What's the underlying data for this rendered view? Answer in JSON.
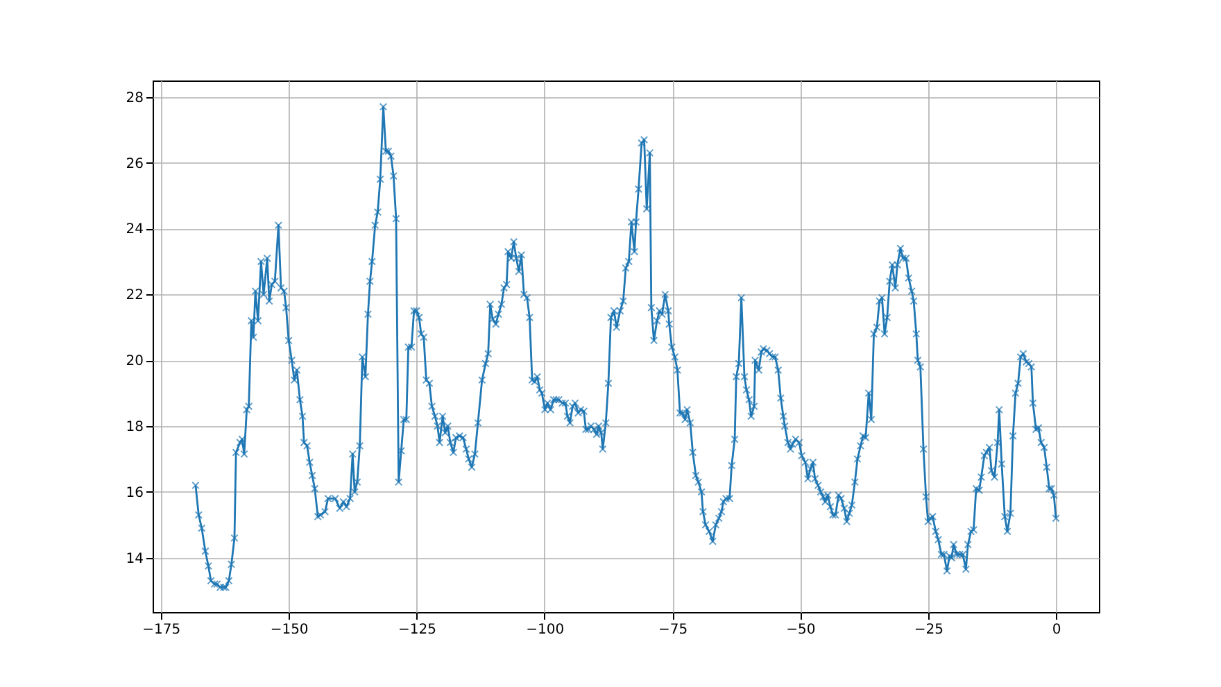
{
  "chart_data": {
    "type": "line",
    "marker": "cross",
    "grid": true,
    "xlim": [
      -176.6,
      8.4
    ],
    "ylim": [
      12.35,
      28.5
    ],
    "xticks": [
      -175,
      -150,
      -125,
      -100,
      -75,
      -50,
      -25,
      0
    ],
    "yticks": [
      14,
      16,
      18,
      20,
      22,
      24,
      26,
      28
    ],
    "series": [
      {
        "color": "#1f77b4",
        "x": [
          -168.2,
          -167.6,
          -167.0,
          -166.3,
          -165.7,
          -165.2,
          -164.5,
          -164.0,
          -163.4,
          -162.7,
          -162.3,
          -161.7,
          -161.2,
          -160.6,
          -160.3,
          -159.5,
          -159.1,
          -158.7,
          -158.2,
          -157.8,
          -157.3,
          -156.9,
          -156.5,
          -156.0,
          -155.4,
          -154.9,
          -154.2,
          -153.8,
          -153.3,
          -152.7,
          -152.0,
          -151.5,
          -150.9,
          -150.5,
          -150.0,
          -149.4,
          -148.9,
          -148.4,
          -147.8,
          -147.3,
          -147.0,
          -146.4,
          -145.9,
          -145.4,
          -144.9,
          -144.3,
          -143.8,
          -142.9,
          -142.3,
          -140.9,
          -140.0,
          -139.3,
          -138.7,
          -138.0,
          -137.5,
          -137.1,
          -136.6,
          -136.1,
          -135.6,
          -135.0,
          -134.5,
          -134.1,
          -133.7,
          -133.1,
          -132.6,
          -132.1,
          -131.5,
          -131.0,
          -130.5,
          -130.0,
          -129.5,
          -129.0,
          -128.5,
          -128.0,
          -127.5,
          -127.0,
          -126.6,
          -126.0,
          -125.5,
          -125.0,
          -124.5,
          -124.1,
          -123.6,
          -123.1,
          -122.5,
          -122.0,
          -121.4,
          -120.9,
          -120.5,
          -119.9,
          -119.4,
          -118.9,
          -118.4,
          -117.8,
          -117.3,
          -116.6,
          -115.9,
          -115.3,
          -114.8,
          -114.2,
          -113.6,
          -113.0,
          -112.2,
          -111.5,
          -111.0,
          -110.6,
          -110.1,
          -109.5,
          -109.0,
          -108.4,
          -107.9,
          -107.4,
          -107.1,
          -106.5,
          -106.0,
          -105.5,
          -105.0,
          -104.5,
          -104.0,
          -103.4,
          -102.9,
          -102.4,
          -101.9,
          -101.4,
          -100.9,
          -100.5,
          -99.9,
          -99.4,
          -98.8,
          -98.2,
          -97.7,
          -97.2,
          -96.5,
          -95.9,
          -95.5,
          -95.0,
          -94.5,
          -94.0,
          -93.4,
          -92.9,
          -92.3,
          -91.9,
          -91.4,
          -90.9,
          -90.3,
          -89.8,
          -89.4,
          -88.9,
          -88.6,
          -88.0,
          -87.5,
          -87.0,
          -86.4,
          -85.9,
          -85.2,
          -84.6,
          -84.1,
          -83.5,
          -83.0,
          -82.4,
          -82.1,
          -81.6,
          -81.0,
          -80.5,
          -80.0,
          -79.4,
          -79.1,
          -78.6,
          -78.0,
          -77.5,
          -77.0,
          -76.4,
          -75.8,
          -75.6,
          -75.1,
          -74.5,
          -74.0,
          -73.5,
          -73.0,
          -72.5,
          -72.1,
          -71.5,
          -71.0,
          -70.4,
          -69.9,
          -69.3,
          -69.0,
          -68.5,
          -67.8,
          -67.1,
          -66.5,
          -65.9,
          -65.4,
          -65.0,
          -64.5,
          -63.8,
          -63.4,
          -62.8,
          -62.5,
          -62.0,
          -61.5,
          -60.9,
          -60.5,
          -60.0,
          -59.6,
          -59.0,
          -58.8,
          -58.1,
          -57.6,
          -57.2,
          -56.5,
          -56.0,
          -55.4,
          -54.9,
          -54.3,
          -53.8,
          -53.3,
          -53.0,
          -52.4,
          -51.9,
          -51.5,
          -50.9,
          -50.2,
          -49.7,
          -49.0,
          -48.5,
          -48.0,
          -47.5,
          -47.1,
          -46.5,
          -46.0,
          -45.5,
          -45.1,
          -44.6,
          -44.1,
          -43.6,
          -43.1,
          -42.5,
          -42.0,
          -41.4,
          -40.9,
          -40.4,
          -39.9,
          -39.3,
          -38.8,
          -38.2,
          -37.7,
          -37.2,
          -36.6,
          -36.1,
          -35.6,
          -35.0,
          -34.5,
          -34.0,
          -33.5,
          -33.0,
          -32.5,
          -32.0,
          -31.4,
          -31.0,
          -30.4,
          -29.9,
          -29.3,
          -28.8,
          -28.2,
          -27.8,
          -27.3,
          -27.0,
          -26.5,
          -25.9,
          -25.4,
          -25.0,
          -24.5,
          -24.1,
          -23.5,
          -23.0,
          -22.4,
          -21.9,
          -21.3,
          -20.8,
          -20.4,
          -20.0,
          -19.4,
          -18.8,
          -18.2,
          -17.6,
          -17.2,
          -16.6,
          -16.1,
          -15.6,
          -15.0,
          -14.6,
          -14.0,
          -13.6,
          -13.0,
          -12.6,
          -12.0,
          -11.4,
          -11.1,
          -10.6,
          -10.0,
          -9.5,
          -8.9,
          -8.4,
          -7.9,
          -7.4,
          -6.9,
          -6.4,
          -5.8,
          -5.3,
          -4.8,
          -4.5,
          -3.9,
          -3.4,
          -2.9,
          -2.3,
          -1.8,
          -1.3,
          -0.9,
          -0.4,
          0.0
        ],
        "values": [
          16.2,
          15.3,
          14.9,
          14.2,
          13.75,
          13.3,
          13.2,
          13.2,
          13.1,
          13.1,
          13.1,
          13.3,
          13.8,
          14.6,
          17.2,
          17.5,
          17.6,
          17.15,
          18.5,
          18.6,
          21.2,
          20.7,
          22.1,
          21.2,
          23.0,
          22.0,
          23.1,
          21.8,
          22.3,
          22.4,
          24.1,
          22.2,
          22.1,
          21.6,
          20.6,
          20.0,
          19.4,
          19.7,
          18.8,
          18.3,
          17.5,
          17.4,
          16.9,
          16.5,
          16.1,
          15.25,
          15.3,
          15.4,
          15.8,
          15.8,
          15.5,
          15.7,
          15.55,
          15.8,
          17.15,
          16.0,
          16.3,
          17.4,
          20.1,
          19.5,
          21.4,
          22.4,
          23.0,
          24.1,
          24.5,
          25.5,
          27.7,
          26.35,
          26.35,
          26.2,
          25.6,
          24.3,
          16.3,
          17.25,
          18.2,
          18.2,
          20.4,
          20.4,
          21.5,
          21.5,
          21.3,
          20.8,
          20.7,
          19.4,
          19.3,
          18.6,
          18.3,
          18.0,
          17.5,
          18.3,
          17.8,
          18.0,
          17.5,
          17.2,
          17.65,
          17.7,
          17.65,
          17.3,
          17.0,
          16.75,
          17.15,
          18.1,
          19.4,
          19.9,
          20.2,
          21.7,
          21.25,
          21.1,
          21.4,
          21.7,
          22.2,
          22.3,
          23.3,
          23.1,
          23.6,
          23.1,
          22.7,
          23.2,
          22.0,
          21.9,
          21.3,
          19.4,
          19.35,
          19.5,
          19.1,
          19.0,
          18.5,
          18.7,
          18.5,
          18.8,
          18.8,
          18.8,
          18.7,
          18.7,
          18.3,
          18.1,
          18.6,
          18.7,
          18.4,
          18.5,
          18.45,
          17.9,
          17.9,
          18.0,
          17.9,
          17.75,
          18.0,
          17.8,
          17.3,
          18.1,
          19.3,
          21.3,
          21.5,
          21.0,
          21.5,
          21.8,
          22.8,
          23.0,
          24.2,
          23.3,
          24.2,
          25.2,
          26.6,
          26.7,
          24.6,
          26.3,
          21.6,
          20.6,
          21.2,
          21.5,
          21.4,
          22.0,
          21.5,
          21.1,
          20.4,
          20.1,
          19.7,
          18.4,
          18.4,
          18.2,
          18.5,
          18.1,
          17.2,
          16.5,
          16.3,
          16.0,
          15.4,
          15.0,
          14.8,
          14.5,
          15.0,
          15.2,
          15.4,
          15.7,
          15.8,
          15.8,
          16.8,
          17.6,
          19.5,
          19.9,
          21.9,
          19.5,
          19.1,
          18.8,
          18.3,
          18.6,
          20.0,
          19.7,
          20.25,
          20.35,
          20.3,
          20.2,
          20.1,
          20.1,
          19.7,
          18.85,
          18.3,
          18.0,
          17.5,
          17.3,
          17.45,
          17.6,
          17.5,
          17.1,
          16.9,
          16.4,
          16.7,
          16.9,
          16.4,
          16.2,
          16.0,
          15.85,
          15.7,
          15.9,
          15.55,
          15.3,
          15.3,
          15.9,
          15.8,
          15.5,
          15.1,
          15.35,
          15.6,
          16.3,
          17.0,
          17.4,
          17.7,
          17.65,
          19.0,
          18.2,
          20.8,
          21.0,
          21.8,
          21.9,
          20.8,
          21.3,
          22.4,
          22.9,
          22.2,
          22.9,
          23.4,
          23.1,
          23.1,
          22.5,
          22.1,
          21.8,
          20.8,
          20.0,
          19.8,
          17.3,
          15.85,
          15.1,
          15.2,
          15.25,
          14.8,
          14.55,
          14.1,
          14.1,
          13.6,
          14.05,
          14.0,
          14.4,
          14.1,
          14.1,
          14.1,
          13.65,
          14.4,
          14.8,
          14.85,
          16.1,
          16.05,
          16.45,
          17.1,
          17.2,
          17.35,
          16.65,
          16.45,
          17.5,
          18.5,
          16.85,
          15.25,
          14.8,
          15.35,
          17.7,
          19.0,
          19.3,
          20.1,
          20.2,
          19.95,
          19.9,
          19.8,
          18.7,
          17.9,
          17.95,
          17.5,
          17.35,
          16.75,
          16.1,
          16.1,
          15.9,
          15.2
        ]
      }
    ]
  }
}
